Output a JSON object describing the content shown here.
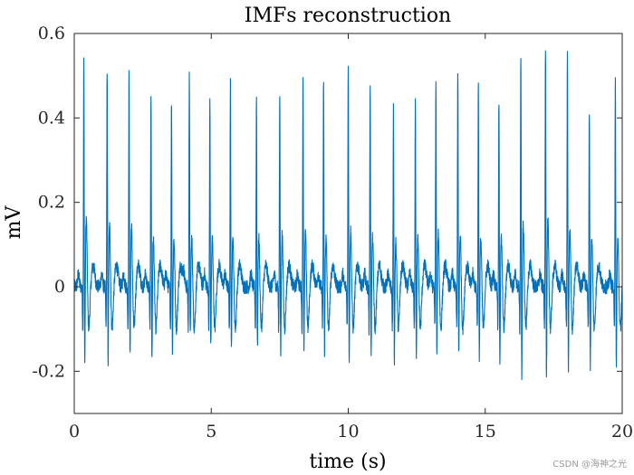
{
  "chart_data": {
    "type": "line",
    "title": "IMFs reconstruction",
    "xlabel": "time (s)",
    "ylabel": "mV",
    "xlim": [
      0,
      20
    ],
    "ylim": [
      -0.3,
      0.6
    ],
    "xticks": [
      0,
      5,
      10,
      15,
      20
    ],
    "xtick_labels": [
      "0",
      "5",
      "10",
      "15",
      "20"
    ],
    "yticks": [
      -0.2,
      0,
      0.2,
      0.4,
      0.6
    ],
    "ytick_labels": [
      "-0.2",
      "0",
      "0.2",
      "0.4",
      "0.6"
    ],
    "grid": false,
    "series": [
      {
        "name": "IMFs reconstruction",
        "color": "#0072bd",
        "sample_rate_hz": 25,
        "r_peaks": [
          {
            "t": 0.35,
            "peak": 0.55,
            "trough": -0.22,
            "t_wave": 0.17
          },
          {
            "t": 1.2,
            "peak": 0.52,
            "trough": -0.21,
            "t_wave": 0.15
          },
          {
            "t": 2.0,
            "peak": 0.51,
            "trough": -0.2,
            "t_wave": 0.15
          },
          {
            "t": 2.8,
            "peak": 0.47,
            "trough": -0.2,
            "t_wave": 0.12
          },
          {
            "t": 3.55,
            "peak": 0.45,
            "trough": -0.18,
            "t_wave": 0.12
          },
          {
            "t": 4.2,
            "peak": 0.5,
            "trough": -0.15,
            "t_wave": 0.12
          },
          {
            "t": 4.95,
            "peak": 0.45,
            "trough": -0.17,
            "t_wave": 0.12
          },
          {
            "t": 5.7,
            "peak": 0.49,
            "trough": -0.18,
            "t_wave": 0.12
          },
          {
            "t": 6.65,
            "peak": 0.46,
            "trough": -0.17,
            "t_wave": 0.12
          },
          {
            "t": 7.5,
            "peak": 0.47,
            "trough": -0.19,
            "t_wave": 0.13
          },
          {
            "t": 8.35,
            "peak": 0.52,
            "trough": -0.18,
            "t_wave": 0.13
          },
          {
            "t": 9.1,
            "peak": 0.5,
            "trough": -0.18,
            "t_wave": 0.12
          },
          {
            "t": 10.0,
            "peak": 0.53,
            "trough": -0.2,
            "t_wave": 0.14
          },
          {
            "t": 10.8,
            "peak": 0.49,
            "trough": -0.18,
            "t_wave": 0.12
          },
          {
            "t": 11.65,
            "peak": 0.43,
            "trough": -0.2,
            "t_wave": 0.11
          },
          {
            "t": 12.45,
            "peak": 0.46,
            "trough": -0.19,
            "t_wave": 0.12
          },
          {
            "t": 13.2,
            "peak": 0.48,
            "trough": -0.2,
            "t_wave": 0.13
          },
          {
            "t": 14.0,
            "peak": 0.51,
            "trough": -0.19,
            "t_wave": 0.13
          },
          {
            "t": 14.75,
            "peak": 0.49,
            "trough": -0.19,
            "t_wave": 0.12
          },
          {
            "t": 15.5,
            "peak": 0.45,
            "trough": -0.2,
            "t_wave": 0.12
          },
          {
            "t": 16.3,
            "peak": 0.56,
            "trough": -0.24,
            "t_wave": 0.15
          },
          {
            "t": 17.2,
            "peak": 0.58,
            "trough": -0.25,
            "t_wave": 0.16
          },
          {
            "t": 18.0,
            "peak": 0.55,
            "trough": -0.22,
            "t_wave": 0.14
          },
          {
            "t": 18.8,
            "peak": 0.42,
            "trough": -0.21,
            "t_wave": 0.12
          },
          {
            "t": 19.75,
            "peak": 0.51,
            "trough": -0.22,
            "t_wave": 0.12
          }
        ]
      }
    ]
  },
  "watermark": "CSDN @海神之光"
}
